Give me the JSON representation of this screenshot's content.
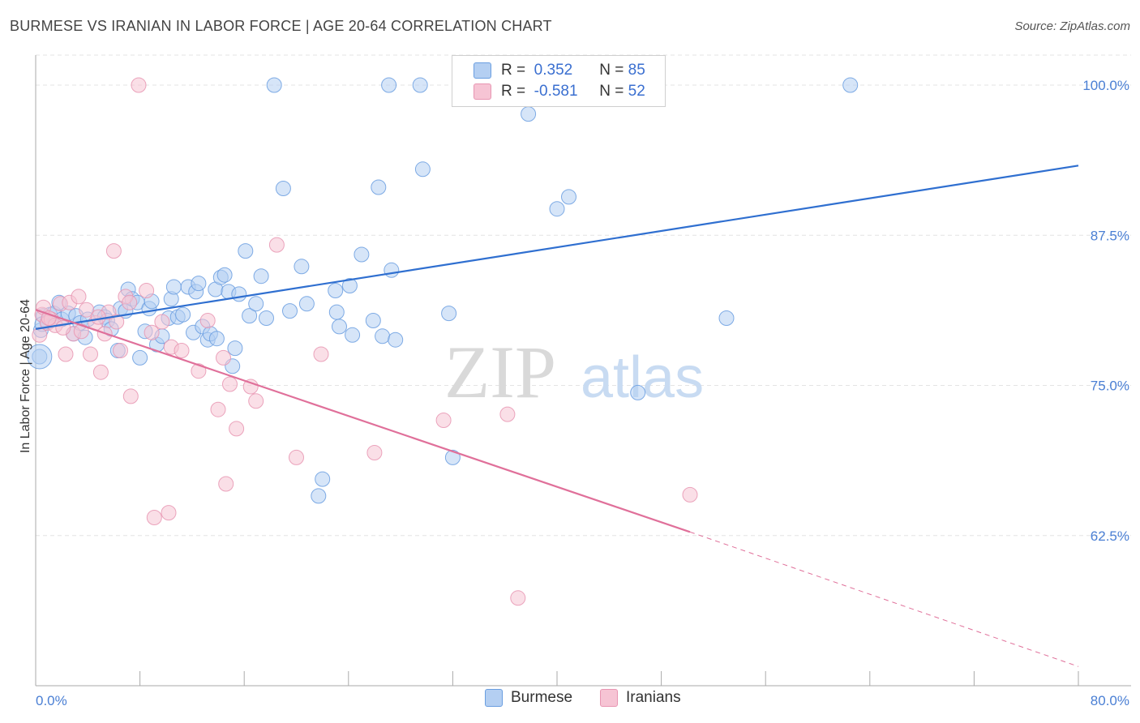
{
  "title": "BURMESE VS IRANIAN IN LABOR FORCE | AGE 20-64 CORRELATION CHART",
  "source": "Source: ZipAtlas.com",
  "colors": {
    "burmese": "#6a9ee0",
    "burmese_fill": "#b4cff2",
    "burmese_line": "#2f6fd0",
    "iranians": "#e895b2",
    "iranians_fill": "#f6c4d4",
    "iranians_line": "#e0709a",
    "tick_text": "#4a7fd4"
  },
  "legend": {
    "burmese": {
      "r_label": "R =",
      "r_value": "0.352",
      "n_label": "N =",
      "n_value": "85"
    },
    "iranians": {
      "r_label": "R =",
      "r_value": "-0.581",
      "n_label": "N =",
      "n_value": "52"
    }
  },
  "bottom_legend": [
    "Burmese",
    "Iranians"
  ],
  "watermark": {
    "zip": "ZIP",
    "atlas": "atlas"
  },
  "chart_data": {
    "type": "scatter",
    "title": "BURMESE VS IRANIAN IN LABOR FORCE | AGE 20-64 CORRELATION CHART",
    "ylabel": "In Labor Force | Age 20-64",
    "xlabel": "",
    "xlim": [
      0,
      80
    ],
    "ylim": [
      50,
      102.5
    ],
    "x_tick_labels": [
      "0.0%",
      "80.0%"
    ],
    "y_ticks": [
      62.5,
      75.0,
      87.5,
      100.0
    ],
    "y_tick_labels": [
      "62.5%",
      "75.0%",
      "87.5%",
      "100.0%"
    ],
    "grid": true,
    "series": [
      {
        "name": "Burmese",
        "points": [
          [
            0.3,
            77.4
          ],
          [
            0.4,
            79.6
          ],
          [
            0.6,
            80.8
          ],
          [
            0.9,
            80.3
          ],
          [
            1.1,
            80.9
          ],
          [
            1.4,
            81.0
          ],
          [
            1.8,
            81.9
          ],
          [
            2.0,
            80.5
          ],
          [
            2.5,
            81.0
          ],
          [
            2.9,
            79.3
          ],
          [
            3.1,
            80.8
          ],
          [
            3.4,
            80.2
          ],
          [
            3.8,
            79.0
          ],
          [
            4.0,
            80.5
          ],
          [
            4.9,
            81.1
          ],
          [
            5.3,
            80.7
          ],
          [
            5.5,
            80.4
          ],
          [
            5.8,
            79.7
          ],
          [
            6.3,
            77.9
          ],
          [
            6.5,
            81.4
          ],
          [
            6.9,
            81.2
          ],
          [
            7.1,
            83.0
          ],
          [
            7.4,
            82.2
          ],
          [
            7.8,
            81.9
          ],
          [
            8.0,
            77.3
          ],
          [
            8.4,
            79.5
          ],
          [
            8.7,
            81.4
          ],
          [
            8.9,
            82.0
          ],
          [
            9.3,
            78.4
          ],
          [
            9.7,
            79.1
          ],
          [
            10.2,
            80.6
          ],
          [
            10.4,
            82.2
          ],
          [
            10.6,
            83.2
          ],
          [
            10.9,
            80.7
          ],
          [
            11.3,
            80.9
          ],
          [
            11.7,
            83.2
          ],
          [
            12.1,
            79.4
          ],
          [
            12.3,
            82.8
          ],
          [
            12.5,
            83.5
          ],
          [
            12.8,
            79.9
          ],
          [
            13.2,
            78.8
          ],
          [
            13.4,
            79.3
          ],
          [
            13.8,
            83.0
          ],
          [
            13.9,
            78.9
          ],
          [
            14.2,
            84.0
          ],
          [
            14.5,
            84.2
          ],
          [
            14.8,
            82.8
          ],
          [
            15.1,
            76.6
          ],
          [
            15.3,
            78.1
          ],
          [
            15.6,
            82.6
          ],
          [
            16.1,
            86.2
          ],
          [
            16.4,
            80.8
          ],
          [
            16.9,
            81.8
          ],
          [
            17.3,
            84.1
          ],
          [
            17.7,
            80.6
          ],
          [
            18.3,
            100.0
          ],
          [
            19.0,
            91.4
          ],
          [
            19.5,
            81.2
          ],
          [
            20.4,
            84.9
          ],
          [
            20.8,
            81.8
          ],
          [
            21.7,
            65.8
          ],
          [
            22.0,
            67.2
          ],
          [
            23.0,
            82.9
          ],
          [
            23.1,
            81.1
          ],
          [
            23.3,
            79.9
          ],
          [
            24.1,
            83.3
          ],
          [
            24.3,
            79.2
          ],
          [
            25.0,
            85.9
          ],
          [
            25.9,
            80.4
          ],
          [
            26.3,
            91.5
          ],
          [
            26.6,
            79.1
          ],
          [
            27.1,
            100.0
          ],
          [
            27.3,
            84.6
          ],
          [
            27.6,
            78.8
          ],
          [
            29.5,
            100.0
          ],
          [
            29.7,
            93.0
          ],
          [
            31.7,
            81.0
          ],
          [
            32.0,
            69.0
          ],
          [
            37.8,
            97.6
          ],
          [
            40.0,
            89.7
          ],
          [
            40.9,
            90.7
          ],
          [
            46.2,
            74.4
          ],
          [
            53.0,
            80.6
          ],
          [
            62.5,
            100.0
          ],
          [
            0.5,
            80.1
          ]
        ]
      },
      {
        "name": "Iranians",
        "points": [
          [
            0.3,
            79.2
          ],
          [
            0.5,
            80.9
          ],
          [
            0.6,
            81.5
          ],
          [
            0.9,
            80.2
          ],
          [
            1.2,
            80.5
          ],
          [
            1.5,
            80.0
          ],
          [
            1.9,
            81.8
          ],
          [
            2.3,
            77.6
          ],
          [
            2.6,
            81.9
          ],
          [
            2.9,
            79.3
          ],
          [
            3.3,
            82.4
          ],
          [
            3.5,
            79.5
          ],
          [
            3.9,
            81.3
          ],
          [
            4.2,
            77.6
          ],
          [
            4.6,
            80.2
          ],
          [
            5.0,
            76.1
          ],
          [
            5.3,
            79.3
          ],
          [
            5.6,
            81.1
          ],
          [
            6.0,
            86.2
          ],
          [
            6.5,
            77.9
          ],
          [
            6.9,
            82.4
          ],
          [
            7.2,
            81.9
          ],
          [
            7.3,
            74.1
          ],
          [
            7.9,
            100.0
          ],
          [
            8.5,
            82.9
          ],
          [
            8.9,
            79.4
          ],
          [
            9.1,
            64.0
          ],
          [
            9.7,
            80.3
          ],
          [
            10.2,
            64.4
          ],
          [
            10.4,
            78.2
          ],
          [
            11.2,
            77.9
          ],
          [
            12.5,
            76.2
          ],
          [
            13.2,
            80.4
          ],
          [
            14.0,
            73.0
          ],
          [
            14.4,
            77.3
          ],
          [
            14.6,
            66.8
          ],
          [
            14.9,
            75.1
          ],
          [
            15.4,
            71.4
          ],
          [
            16.5,
            74.9
          ],
          [
            16.9,
            73.7
          ],
          [
            18.5,
            86.7
          ],
          [
            20.0,
            69.0
          ],
          [
            21.9,
            77.6
          ],
          [
            26.0,
            69.4
          ],
          [
            31.3,
            72.1
          ],
          [
            36.2,
            72.6
          ],
          [
            37.0,
            57.3
          ],
          [
            50.2,
            65.9
          ],
          [
            1.0,
            80.6
          ],
          [
            2.1,
            79.8
          ],
          [
            4.8,
            80.7
          ],
          [
            6.2,
            80.3
          ]
        ]
      }
    ],
    "trendlines": [
      {
        "series": "Burmese",
        "x0": 0,
        "y0": 79.7,
        "x1": 80,
        "y1": 93.3,
        "style": "solid"
      },
      {
        "series": "Iranians",
        "x0": 0,
        "y0": 81.3,
        "x1": 50.2,
        "y1": 62.8,
        "style": "solid"
      },
      {
        "series": "Iranians",
        "x0": 50.2,
        "y0": 62.8,
        "x1": 80,
        "y1": 51.6,
        "style": "dashed"
      }
    ]
  }
}
